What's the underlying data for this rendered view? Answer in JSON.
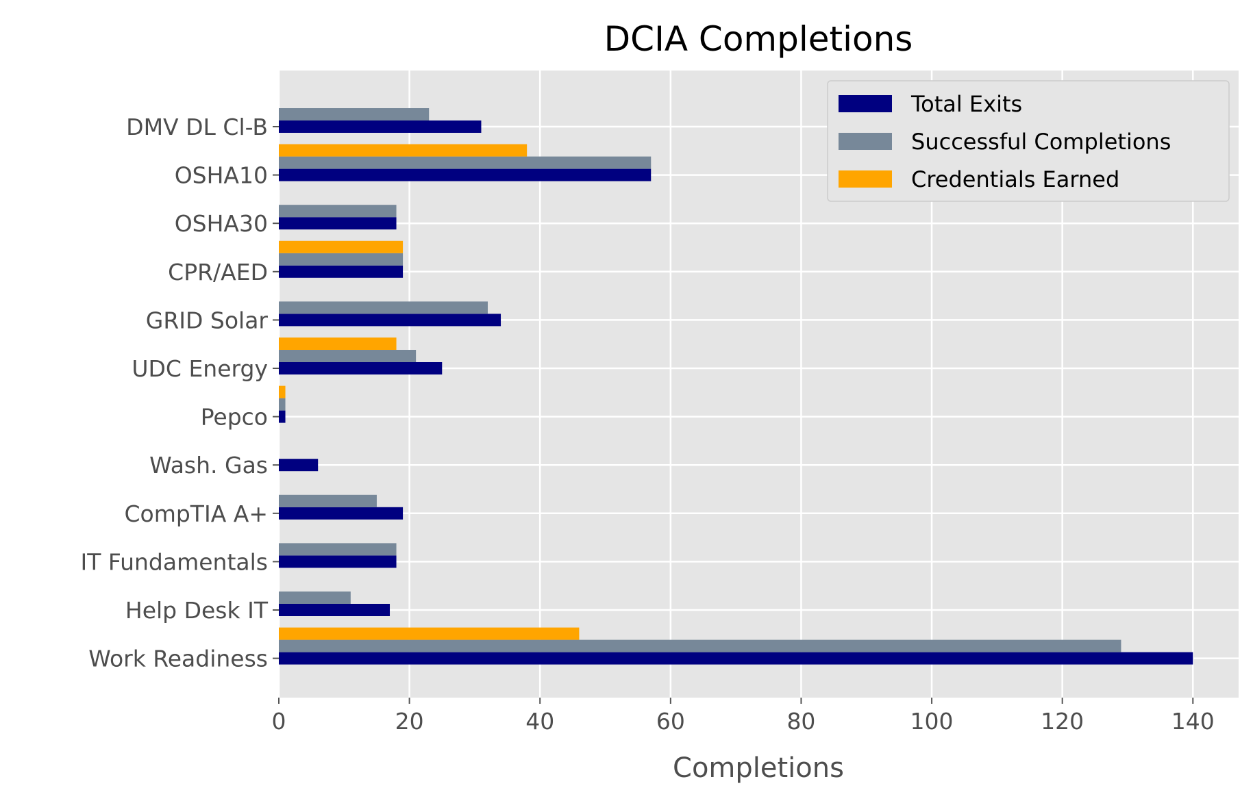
{
  "chart_data": {
    "type": "bar",
    "orientation": "horizontal",
    "title": "DCIA Completions",
    "xlabel": "Completions",
    "ylabel": "",
    "xlim": [
      0,
      147
    ],
    "xticks": [
      0,
      20,
      40,
      60,
      80,
      100,
      120,
      140
    ],
    "grid": true,
    "legend_position": "top-right",
    "categories": [
      "Work Readiness",
      "Help Desk IT",
      "IT Fundamentals",
      "CompTIA A+",
      "Wash. Gas",
      "Pepco",
      "UDC Energy",
      "GRID Solar",
      "CPR/AED",
      "OSHA30",
      "OSHA10",
      "DMV DL Cl-B"
    ],
    "series": [
      {
        "name": "Total Exits",
        "color": "#000080",
        "values": [
          140,
          17,
          18,
          19,
          6,
          1,
          25,
          34,
          19,
          18,
          57,
          31
        ]
      },
      {
        "name": "Successful Completions",
        "color": "#778899",
        "values": [
          129,
          11,
          18,
          15,
          0,
          1,
          21,
          32,
          19,
          18,
          57,
          23
        ]
      },
      {
        "name": "Credentials Earned",
        "color": "#FFA500",
        "values": [
          46,
          0,
          0,
          0,
          0,
          1,
          18,
          0,
          19,
          0,
          38,
          0
        ]
      }
    ]
  }
}
